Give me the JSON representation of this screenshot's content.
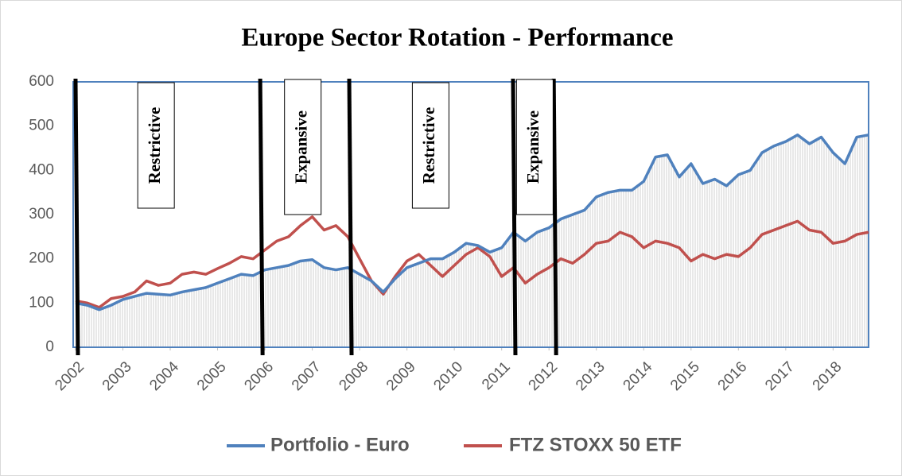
{
  "chart_data": {
    "type": "line",
    "title": "Europe Sector Rotation - Performance",
    "x": [
      2002,
      2002.25,
      2002.5,
      2002.75,
      2003,
      2003.25,
      2003.5,
      2003.75,
      2004,
      2004.25,
      2004.5,
      2004.75,
      2005,
      2005.25,
      2005.5,
      2005.75,
      2006,
      2006.25,
      2006.5,
      2006.75,
      2007,
      2007.25,
      2007.5,
      2007.75,
      2008,
      2008.25,
      2008.5,
      2008.75,
      2009,
      2009.25,
      2009.5,
      2009.75,
      2010,
      2010.25,
      2010.5,
      2010.75,
      2011,
      2011.25,
      2011.5,
      2011.75,
      2012,
      2012.25,
      2012.5,
      2012.75,
      2013,
      2013.25,
      2013.5,
      2013.75,
      2014,
      2014.25,
      2014.5,
      2014.75,
      2015,
      2015.25,
      2015.5,
      2015.75,
      2016,
      2016.25,
      2016.5,
      2016.75,
      2017,
      2017.25,
      2017.5,
      2017.75,
      2018,
      2018.25,
      2018.5,
      2018.75
    ],
    "series": [
      {
        "name": "Portfolio - Euro",
        "color": "#4f81bd",
        "values": [
          100,
          95,
          85,
          95,
          108,
          115,
          122,
          120,
          118,
          125,
          130,
          135,
          145,
          155,
          165,
          162,
          175,
          180,
          185,
          195,
          198,
          180,
          175,
          180,
          165,
          150,
          125,
          155,
          180,
          190,
          200,
          200,
          215,
          235,
          230,
          215,
          225,
          260,
          240,
          260,
          270,
          290,
          300,
          310,
          340,
          350,
          355,
          355,
          375,
          430,
          435,
          385,
          415,
          370,
          380,
          365,
          390,
          400,
          440,
          455,
          465,
          480,
          460,
          475,
          440,
          415,
          475,
          480
        ]
      },
      {
        "name": "FTZ STOXX 50 ETF",
        "color": "#c0504d",
        "values": [
          105,
          100,
          90,
          110,
          115,
          125,
          150,
          140,
          145,
          165,
          170,
          165,
          178,
          190,
          205,
          200,
          220,
          240,
          250,
          275,
          295,
          265,
          275,
          250,
          200,
          150,
          120,
          160,
          195,
          210,
          185,
          160,
          185,
          210,
          225,
          205,
          160,
          180,
          145,
          165,
          180,
          200,
          190,
          210,
          235,
          240,
          260,
          250,
          225,
          240,
          235,
          225,
          195,
          210,
          200,
          210,
          205,
          225,
          255,
          265,
          275,
          285,
          265,
          260,
          235,
          240,
          255,
          260
        ]
      }
    ],
    "xlim": [
      2001.95,
      2018.75
    ],
    "xticks": [
      2002,
      2003,
      2004,
      2005,
      2006,
      2007,
      2008,
      2009,
      2010,
      2011,
      2012,
      2013,
      2014,
      2015,
      2016,
      2017,
      2018
    ],
    "ylim": [
      0,
      600
    ],
    "yticks": [
      0,
      100,
      200,
      300,
      400,
      500,
      600
    ],
    "regime_lines": [
      2002,
      2005.9,
      2007.78,
      2011.24,
      2012.1
    ],
    "annotations": [
      {
        "text": "Restrictive",
        "x": 2003.7
      },
      {
        "text": "Expansive",
        "x": 2006.8
      },
      {
        "text": "Restrictive",
        "x": 2009.5
      },
      {
        "text": "Expansive",
        "x": 2011.7
      }
    ],
    "legend": "bottom"
  }
}
